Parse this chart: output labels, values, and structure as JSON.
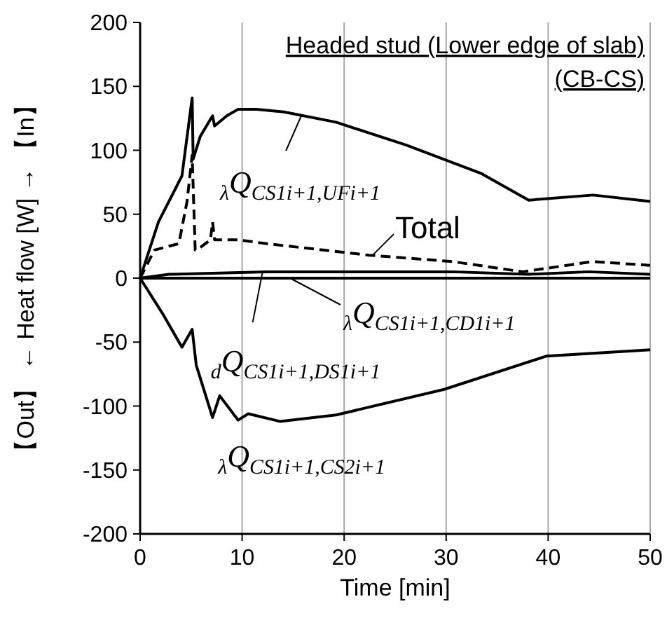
{
  "chart_data": {
    "type": "line",
    "title": "Headed stud (Lower edge of slab)",
    "subtitle": "(CB-CS)",
    "xlabel": "Time [min]",
    "ylabel": "【Out】 ← Heat flow [W] → 【In】",
    "xlim": [
      0,
      50
    ],
    "xticks": [
      0,
      10,
      20,
      30,
      40,
      50
    ],
    "ylim": [
      -200,
      200
    ],
    "yticks": [
      -200,
      -150,
      -100,
      -50,
      0,
      50,
      100,
      150,
      200
    ],
    "grid": "x",
    "marker": "none",
    "series": [
      {
        "color": "#000000",
        "line_style": "solid",
        "x": [
          0,
          1.8,
          4.1,
          5.1,
          5.2,
          5.9,
          7.1,
          7.3,
          8.5,
          9.6,
          11.4,
          14.1,
          19.2,
          26.1,
          33.4,
          38.1,
          44.4,
          50
        ],
        "values": [
          0,
          44,
          80,
          141,
          93,
          111,
          127,
          119,
          127,
          132,
          132,
          130,
          122,
          104,
          82,
          61,
          65,
          60
        ]
      },
      {
        "color": "#000000",
        "line_style": "dashed",
        "x": [
          0,
          1.4,
          3.8,
          4.6,
          5.1,
          5.4,
          5.9,
          6.9,
          7.1,
          7.3,
          9.6,
          12.4,
          22.4,
          30.6,
          37.5,
          44.4,
          50
        ],
        "values": [
          0,
          22,
          27,
          60,
          96,
          22,
          24,
          30,
          44,
          30,
          30,
          27,
          18,
          13,
          5,
          13,
          10
        ]
      },
      {
        "color": "#000000",
        "line_style": "solid",
        "x": [
          0,
          10,
          20,
          30,
          40,
          50
        ],
        "values": [
          0,
          0,
          0,
          0,
          0,
          0
        ]
      },
      {
        "color": "#000000",
        "line_style": "solid",
        "x": [
          0,
          2.8,
          12.4,
          30.6,
          38,
          44,
          50
        ],
        "values": [
          0,
          3,
          5,
          5,
          3,
          5,
          3
        ]
      },
      {
        "color": "#000000",
        "line_style": "solid",
        "x": [
          0,
          2.3,
          4.1,
          5.1,
          5.5,
          7.1,
          7.8,
          9.6,
          10.6,
          13.7,
          19.2,
          29.8,
          39.8,
          50
        ],
        "values": [
          0,
          -29,
          -54,
          -40,
          -68,
          -109,
          -92,
          -111,
          -106,
          -112,
          -107,
          -87,
          -61,
          -56
        ]
      }
    ],
    "annotations": [
      {
        "text": "$_{λ}$Q$_{CS1i+1,UFi+1}$",
        "x": 15.8,
        "y": 127
      },
      {
        "text": "Total",
        "x": 22.8,
        "y": 18
      },
      {
        "text": "$_{λ}$Q$_{CS1i+1,CD1i+1}$",
        "x": 14.7,
        "y": 0
      },
      {
        "text": "$_{d}$Q$_{CS1i+1,DS1i+1}$",
        "x": 12,
        "y": 5
      },
      {
        "text": "$_{λ}$Q$_{CS1i+1,CS2i+1}$",
        "x": 20,
        "y": -107
      }
    ]
  }
}
